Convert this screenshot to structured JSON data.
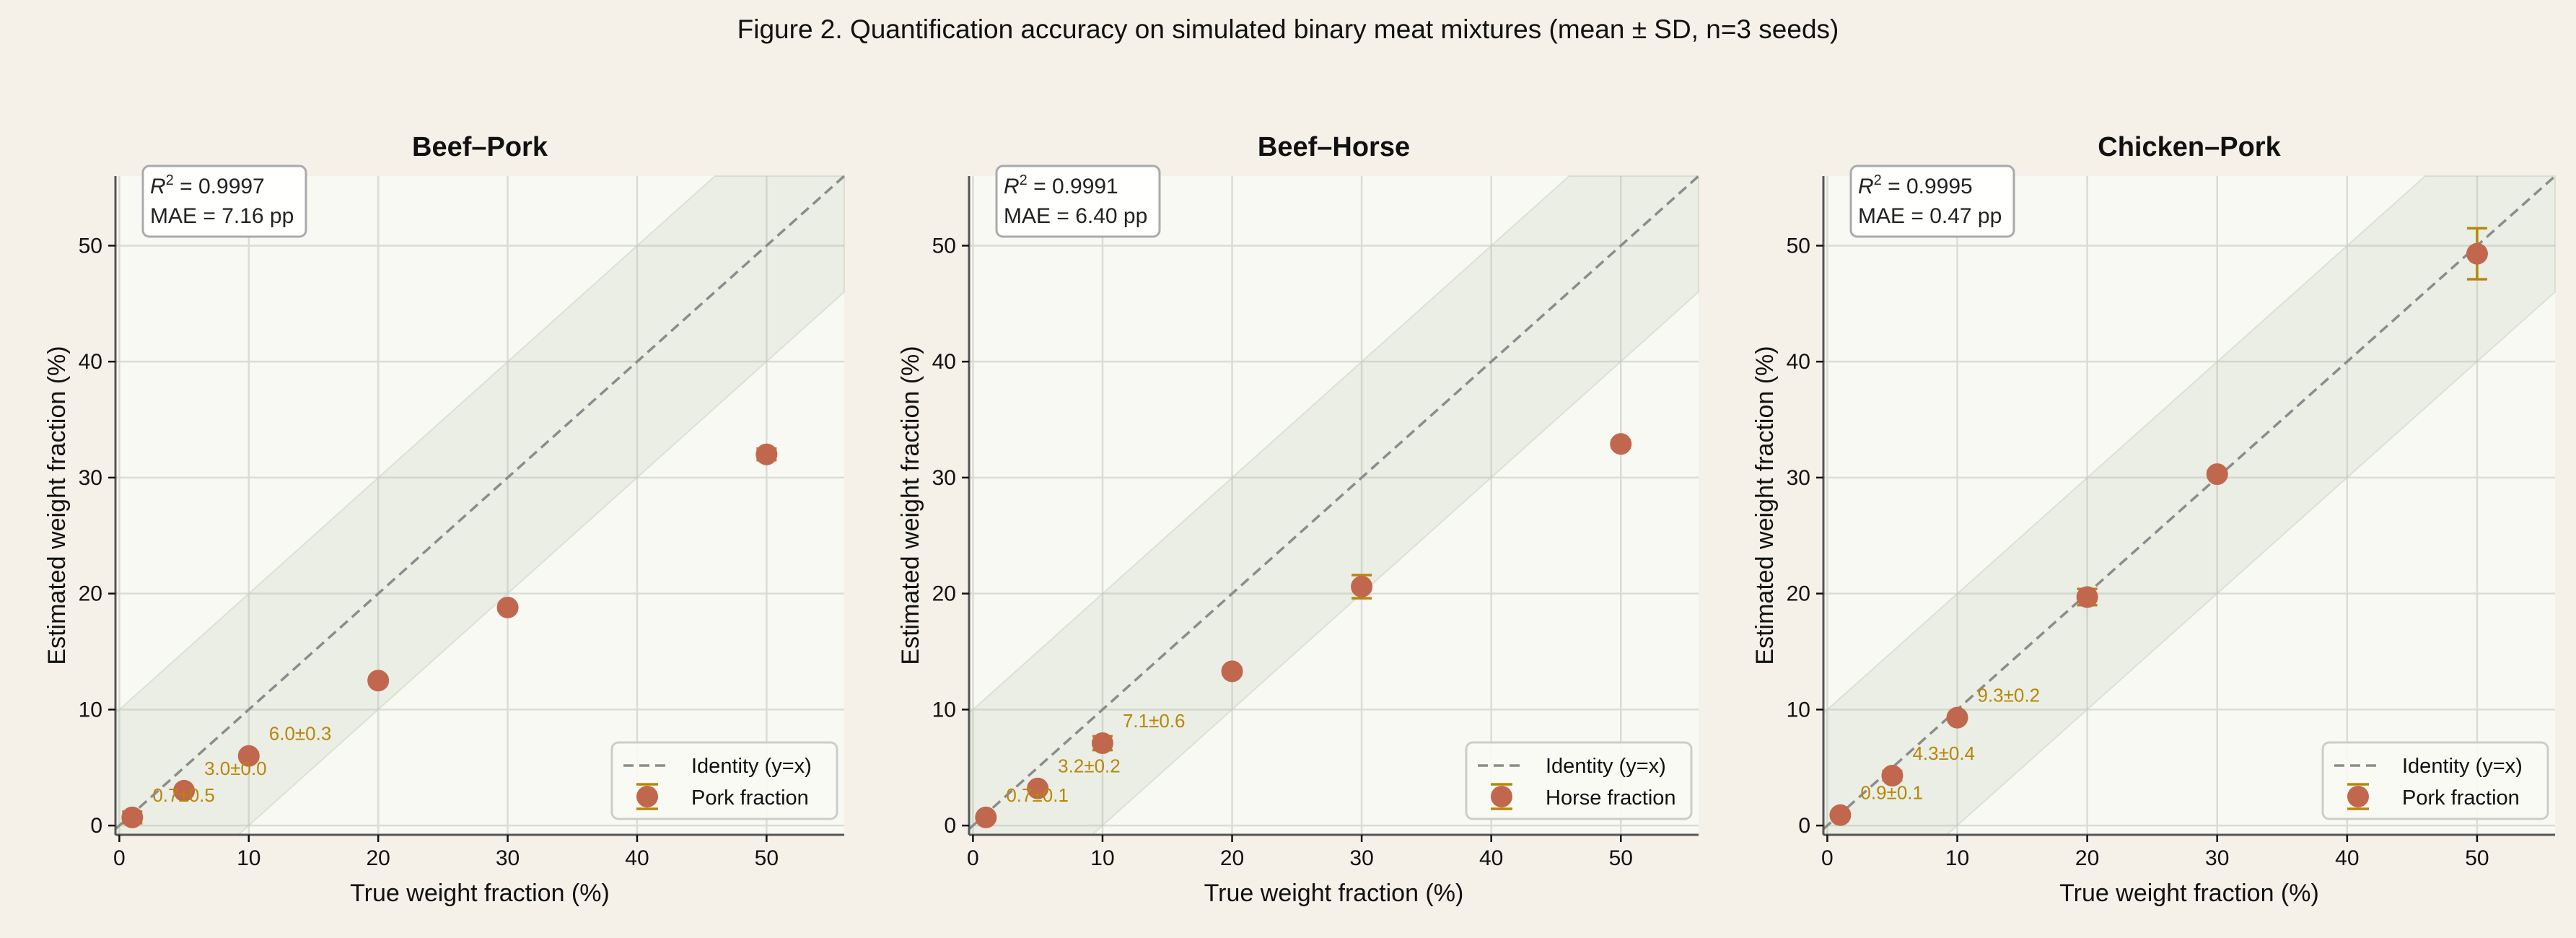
{
  "figure_title": "Figure 2.  Quantification accuracy on simulated binary meat mixtures (mean ± SD, n=3 seeds)",
  "colors": {
    "background": "#f5f0e8",
    "axes_bg": "#f9f9f4",
    "point": "#c1674e",
    "errorbar": "#b8860b",
    "identity": "#8c8c8c",
    "band": "#e6ebdf",
    "annotation": "#b8860b"
  },
  "chart_data": [
    {
      "type": "scatter",
      "title": "Beef–Pork",
      "xlabel": "True weight fraction (%)",
      "ylabel": "Estimated weight fraction (%)",
      "xlim": [
        -0.3,
        56
      ],
      "ylim": [
        -0.8,
        56
      ],
      "xticks": [
        0,
        10,
        20,
        30,
        40,
        50
      ],
      "yticks": [
        0,
        10,
        20,
        30,
        40,
        50
      ],
      "grid": true,
      "band": "±10 pp around identity",
      "stats": {
        "r2_label": "= 0.9997",
        "mae": "MAE = 7.16 pp"
      },
      "legend": {
        "placement": "lower-right",
        "identity": "Identity (y=x)",
        "series": "Pork fraction"
      },
      "x": [
        1,
        5,
        10,
        20,
        30,
        50
      ],
      "y": [
        0.7,
        3.0,
        6.0,
        12.5,
        18.8,
        32.0
      ],
      "sd": [
        0.5,
        0.0,
        0.3,
        0.3,
        0.3,
        0.5
      ],
      "annotations": [
        "0.7±0.5",
        "3.0±0.0",
        "6.0±0.3"
      ]
    },
    {
      "type": "scatter",
      "title": "Beef–Horse",
      "xlabel": "True weight fraction (%)",
      "ylabel": "Estimated weight fraction (%)",
      "xlim": [
        -0.3,
        56
      ],
      "ylim": [
        -0.8,
        56
      ],
      "xticks": [
        0,
        10,
        20,
        30,
        40,
        50
      ],
      "yticks": [
        0,
        10,
        20,
        30,
        40,
        50
      ],
      "grid": true,
      "band": "±10 pp around identity",
      "stats": {
        "r2_label": "= 0.9991",
        "mae": "MAE = 6.40 pp"
      },
      "legend": {
        "placement": "lower-right",
        "identity": "Identity (y=x)",
        "series": "Horse fraction"
      },
      "x": [
        1,
        5,
        10,
        20,
        30,
        50
      ],
      "y": [
        0.7,
        3.2,
        7.1,
        13.3,
        20.6,
        32.9
      ],
      "sd": [
        0.1,
        0.2,
        0.6,
        0.3,
        1.0,
        0.3
      ],
      "annotations": [
        "0.7±0.1",
        "3.2±0.2",
        "7.1±0.6"
      ]
    },
    {
      "type": "scatter",
      "title": "Chicken–Pork",
      "xlabel": "True weight fraction (%)",
      "ylabel": "Estimated weight fraction (%)",
      "xlim": [
        -0.3,
        56
      ],
      "ylim": [
        -0.8,
        56
      ],
      "xticks": [
        0,
        10,
        20,
        30,
        40,
        50
      ],
      "yticks": [
        0,
        10,
        20,
        30,
        40,
        50
      ],
      "grid": true,
      "band": "±10 pp around identity",
      "stats": {
        "r2_label": "= 0.9995",
        "mae": "MAE = 0.47 pp"
      },
      "legend": {
        "placement": "lower-right",
        "identity": "Identity (y=x)",
        "series": "Pork fraction"
      },
      "x": [
        1,
        5,
        10,
        20,
        30,
        50
      ],
      "y": [
        0.9,
        4.3,
        9.3,
        19.7,
        30.3,
        49.3
      ],
      "sd": [
        0.1,
        0.4,
        0.2,
        0.7,
        0.3,
        2.2
      ],
      "annotations": [
        "0.9±0.1",
        "4.3±0.4",
        "9.3±0.2"
      ]
    }
  ]
}
